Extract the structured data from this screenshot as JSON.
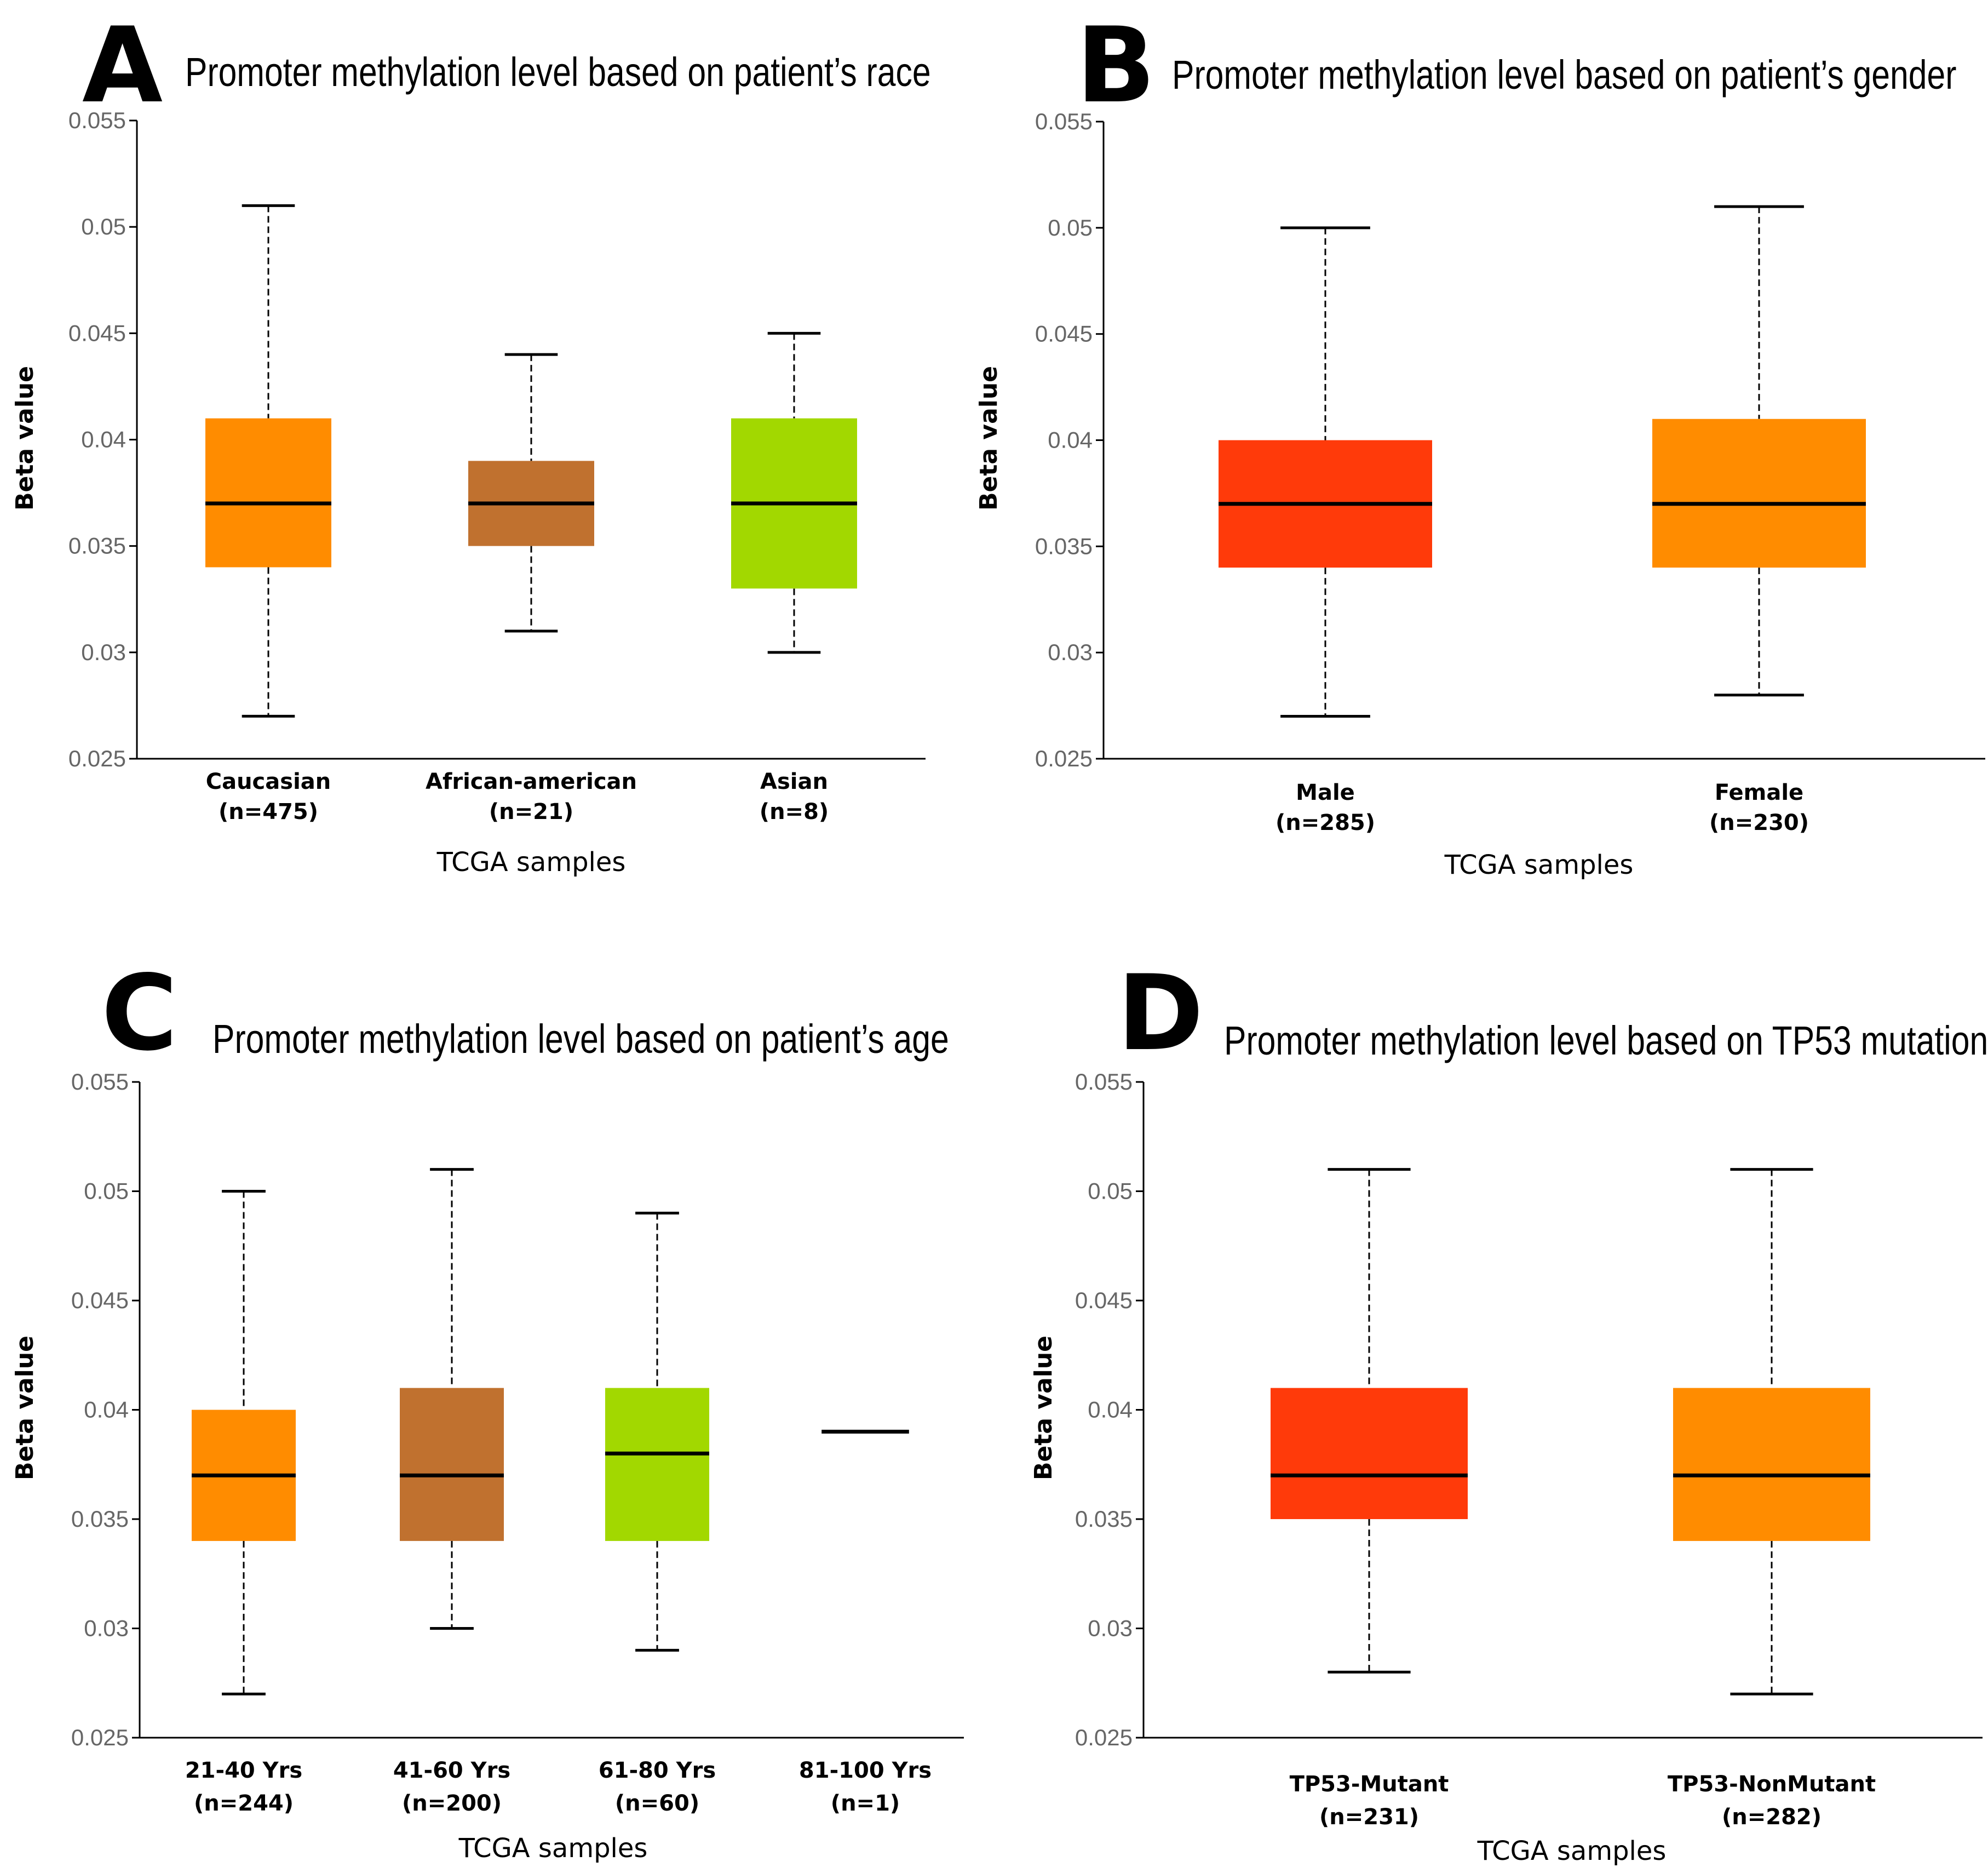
{
  "chart_data": [
    {
      "panel": "A",
      "type": "box",
      "title": "Promoter methylation level based on patient’s race",
      "xlabel": "TCGA samples",
      "ylabel": "Beta value",
      "ylim": [
        0.025,
        0.055
      ],
      "yticks": [
        "0.025",
        "0.03",
        "0.035",
        "0.04",
        "0.045",
        "0.05",
        "0.055"
      ],
      "groups": [
        {
          "name": "Caucasian",
          "n": "(n=475)",
          "color": "#ff8c00",
          "min": 0.027,
          "q1": 0.034,
          "median": 0.037,
          "q3": 0.041,
          "max": 0.051
        },
        {
          "name": "African-american",
          "n": "(n=21)",
          "color": "#c0712f",
          "min": 0.031,
          "q1": 0.035,
          "median": 0.037,
          "q3": 0.039,
          "max": 0.044
        },
        {
          "name": "Asian",
          "n": "(n=8)",
          "color": "#a2d800",
          "min": 0.03,
          "q1": 0.033,
          "median": 0.037,
          "q3": 0.041,
          "max": 0.045
        }
      ]
    },
    {
      "panel": "B",
      "type": "box",
      "title": "Promoter methylation level based on patient’s gender",
      "xlabel": "TCGA samples",
      "ylabel": "Beta value",
      "ylim": [
        0.025,
        0.055
      ],
      "yticks": [
        "0.025",
        "0.03",
        "0.035",
        "0.04",
        "0.045",
        "0.05",
        "0.055"
      ],
      "groups": [
        {
          "name": "Male",
          "n": "(n=285)",
          "color": "#ff3a0a",
          "min": 0.027,
          "q1": 0.034,
          "median": 0.037,
          "q3": 0.04,
          "max": 0.05
        },
        {
          "name": "Female",
          "n": "(n=230)",
          "color": "#ff8c00",
          "min": 0.028,
          "q1": 0.034,
          "median": 0.037,
          "q3": 0.041,
          "max": 0.051
        }
      ]
    },
    {
      "panel": "C",
      "type": "box",
      "title": "Promoter methylation level based on patient’s age",
      "xlabel": "TCGA samples",
      "ylabel": "Beta value",
      "ylim": [
        0.025,
        0.055
      ],
      "yticks": [
        "0.025",
        "0.03",
        "0.035",
        "0.04",
        "0.045",
        "0.05",
        "0.055"
      ],
      "groups": [
        {
          "name": "21-40 Yrs",
          "n": "(n=244)",
          "color": "#ff8c00",
          "min": 0.027,
          "q1": 0.034,
          "median": 0.037,
          "q3": 0.04,
          "max": 0.05
        },
        {
          "name": "41-60 Yrs",
          "n": "(n=200)",
          "color": "#c0712f",
          "min": 0.03,
          "q1": 0.034,
          "median": 0.037,
          "q3": 0.041,
          "max": 0.051
        },
        {
          "name": "61-80 Yrs",
          "n": "(n=60)",
          "color": "#a2d800",
          "min": 0.029,
          "q1": 0.034,
          "median": 0.038,
          "q3": 0.041,
          "max": 0.049
        },
        {
          "name": "81-100 Yrs",
          "n": "(n=1)",
          "color": "#ff3a0a",
          "min": 0.039,
          "q1": 0.039,
          "median": 0.039,
          "q3": 0.039,
          "max": 0.039
        }
      ]
    },
    {
      "panel": "D",
      "type": "box",
      "title": "Promoter methylation level based on TP53 mutation",
      "xlabel": "TCGA samples",
      "ylabel": "Beta value",
      "ylim": [
        0.025,
        0.055
      ],
      "yticks": [
        "0.025",
        "0.03",
        "0.035",
        "0.04",
        "0.045",
        "0.05",
        "0.055"
      ],
      "groups": [
        {
          "name": "TP53-Mutant",
          "n": "(n=231)",
          "color": "#ff3a0a",
          "min": 0.028,
          "q1": 0.035,
          "median": 0.037,
          "q3": 0.041,
          "max": 0.051
        },
        {
          "name": "TP53-NonMutant",
          "n": "(n=282)",
          "color": "#ff8c00",
          "min": 0.027,
          "q1": 0.034,
          "median": 0.037,
          "q3": 0.041,
          "max": 0.051
        }
      ]
    }
  ]
}
